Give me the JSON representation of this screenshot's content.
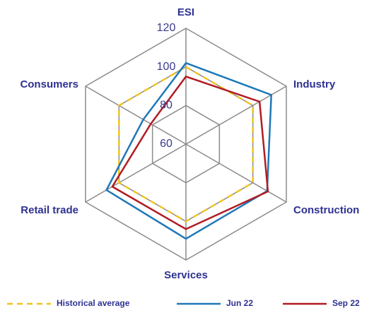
{
  "chart_data": {
    "type": "radar",
    "categories": [
      "ESI",
      "Industry",
      "Construction",
      "Services",
      "Retail trade",
      "Consumers"
    ],
    "series": [
      {
        "name": "Historical average",
        "color": "#f2c21b",
        "dashed": true,
        "values": [
          100,
          100,
          100,
          100,
          100,
          100
        ]
      },
      {
        "name": "Jun 22",
        "color": "#1f78b8",
        "dashed": false,
        "values": [
          102,
          111,
          108.5,
          109,
          107.5,
          85.5
        ]
      },
      {
        "name": "Sep 22",
        "color": "#b01c24",
        "dashed": false,
        "values": [
          95,
          104,
          109,
          104,
          104,
          81
        ]
      }
    ],
    "rlim": [
      60,
      120
    ],
    "rticks": [
      60,
      80,
      100,
      120
    ],
    "grid": true,
    "legend": "bottom"
  }
}
